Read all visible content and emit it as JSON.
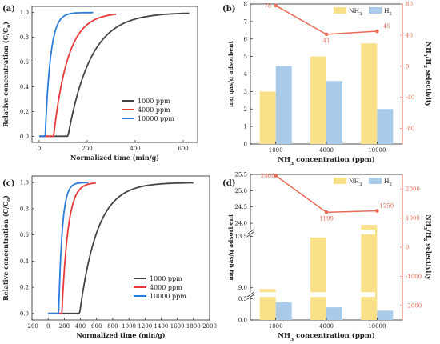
{
  "chart_data": [
    {
      "panel": "(a)",
      "type": "line",
      "xlabel": "Normalized time (min/g)",
      "ylabel": "Relative concentration (C/C",
      "ylabel_sub": "0",
      "ylabel_end": ")",
      "xlim": [
        -30,
        660
      ],
      "ylim": [
        -0.05,
        1.05
      ],
      "xticks": [
        0,
        200,
        400,
        600
      ],
      "yticks": [
        0.0,
        0.2,
        0.4,
        0.6,
        0.8,
        1.0
      ],
      "series": [
        {
          "name": "1000 ppm",
          "color": "#444444",
          "t0": 120,
          "tau": 95,
          "xend": 625
        },
        {
          "name": "4000 ppm",
          "color": "#e83a3a",
          "t0": 60,
          "tau": 60,
          "xend": 320
        },
        {
          "name": "10000 ppm",
          "color": "#2b7cdb",
          "t0": 25,
          "tau": 22,
          "xend": 225
        }
      ],
      "legend_position": "lower-right"
    },
    {
      "panel": "(b)",
      "type": "bar",
      "categories": [
        "1000",
        "4000",
        "10000"
      ],
      "xlabel": "NH3 concentration (ppm)",
      "xlabel_main": "NH",
      "xlabel_sub": "3",
      "xlabel_rest": " concentration (ppm)",
      "ylabel": "mg gas/g adsorbent",
      "ylim": [
        0,
        8
      ],
      "yticks": [
        0,
        1,
        2,
        3,
        4,
        5,
        6,
        7,
        8
      ],
      "series": [
        {
          "name": "NH3",
          "name_main": "NH",
          "name_sub": "3",
          "color": "#fbe08a",
          "values": [
            3.0,
            5.0,
            5.75
          ]
        },
        {
          "name": "H2",
          "name_main": "H",
          "name_sub": "2",
          "color": "#a9cbe9",
          "values": [
            4.45,
            3.6,
            2.0
          ]
        }
      ],
      "y2label": "NH3/H2 selectivity",
      "y2label_parts": [
        "NH",
        "3",
        "/H",
        "2",
        " selectivity"
      ],
      "y2lim": [
        -100,
        80
      ],
      "y2ticks": [
        -80,
        -40,
        0,
        40,
        80
      ],
      "selectivity": {
        "color": "#ea6a55",
        "values": [
          78,
          41,
          45
        ],
        "labels": [
          "78",
          "41",
          "45"
        ]
      },
      "legend_position": "top-right"
    },
    {
      "panel": "(c)",
      "type": "line",
      "xlabel": "Normalized time (min/g)",
      "ylabel": "Relative concentration (C/C",
      "ylabel_sub": "0",
      "ylabel_end": ")",
      "xlim": [
        -200,
        2000
      ],
      "ylim": [
        -0.05,
        1.05
      ],
      "xticks": [
        -200,
        0,
        200,
        400,
        600,
        800,
        1000,
        1200,
        1400,
        1600,
        1800,
        2000
      ],
      "yticks": [
        0.0,
        0.2,
        0.4,
        0.6,
        0.8,
        1.0
      ],
      "series": [
        {
          "name": "1000 ppm",
          "color": "#444444",
          "t0": 390,
          "tau": 220,
          "xend": 1800
        },
        {
          "name": "4000 ppm",
          "color": "#e83a3a",
          "t0": 170,
          "tau": 75,
          "xend": 590
        },
        {
          "name": "10000 ppm",
          "color": "#2b7cdb",
          "t0": 130,
          "tau": 45,
          "xend": 500
        }
      ],
      "legend_position": "lower-right"
    },
    {
      "panel": "(d)",
      "type": "bar",
      "categories": [
        "1000",
        "4000",
        "10000"
      ],
      "xlabel": "NH3 concentration (ppm)",
      "xlabel_main": "NH",
      "xlabel_sub": "3",
      "xlabel_rest": " concentration (ppm)",
      "ylabel": "mg gas/g adsorbent",
      "yticks": [
        "0.0",
        "0.5",
        "9.0",
        "13.5",
        "24.0",
        "24.5",
        "25.0",
        "25.5"
      ],
      "series": [
        {
          "name": "NH3",
          "name_main": "NH",
          "name_sub": "3",
          "color": "#fbe08a",
          "values": [
            8.9,
            13.4,
            23.95
          ]
        },
        {
          "name": "H2",
          "name_main": "H",
          "name_sub": "2",
          "color": "#a9cbe9",
          "values": [
            0.42,
            0.3,
            0.22
          ]
        }
      ],
      "y2label": "NH3/H2 selectivity",
      "y2label_parts": [
        "NH",
        "3",
        "/H",
        "2",
        " selectivity"
      ],
      "y2lim": [
        -2500,
        2500
      ],
      "y2ticks": [
        -2000,
        -1000,
        0,
        1000,
        2000
      ],
      "selectivity": {
        "color": "#ea6a55",
        "values": [
          2460,
          1199,
          1250
        ],
        "labels": [
          "2460",
          "1199",
          "1250"
        ]
      },
      "legend_position": "top-right"
    }
  ]
}
